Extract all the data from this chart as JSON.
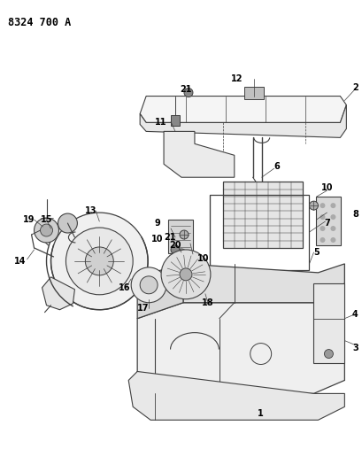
{
  "title": "8324 700 A",
  "bg_color": "#ffffff",
  "lc": "#404040",
  "lw": 0.7,
  "title_fontsize": 8.5,
  "label_fontsize": 7,
  "figsize": [
    4.1,
    5.33
  ],
  "dpi": 100
}
